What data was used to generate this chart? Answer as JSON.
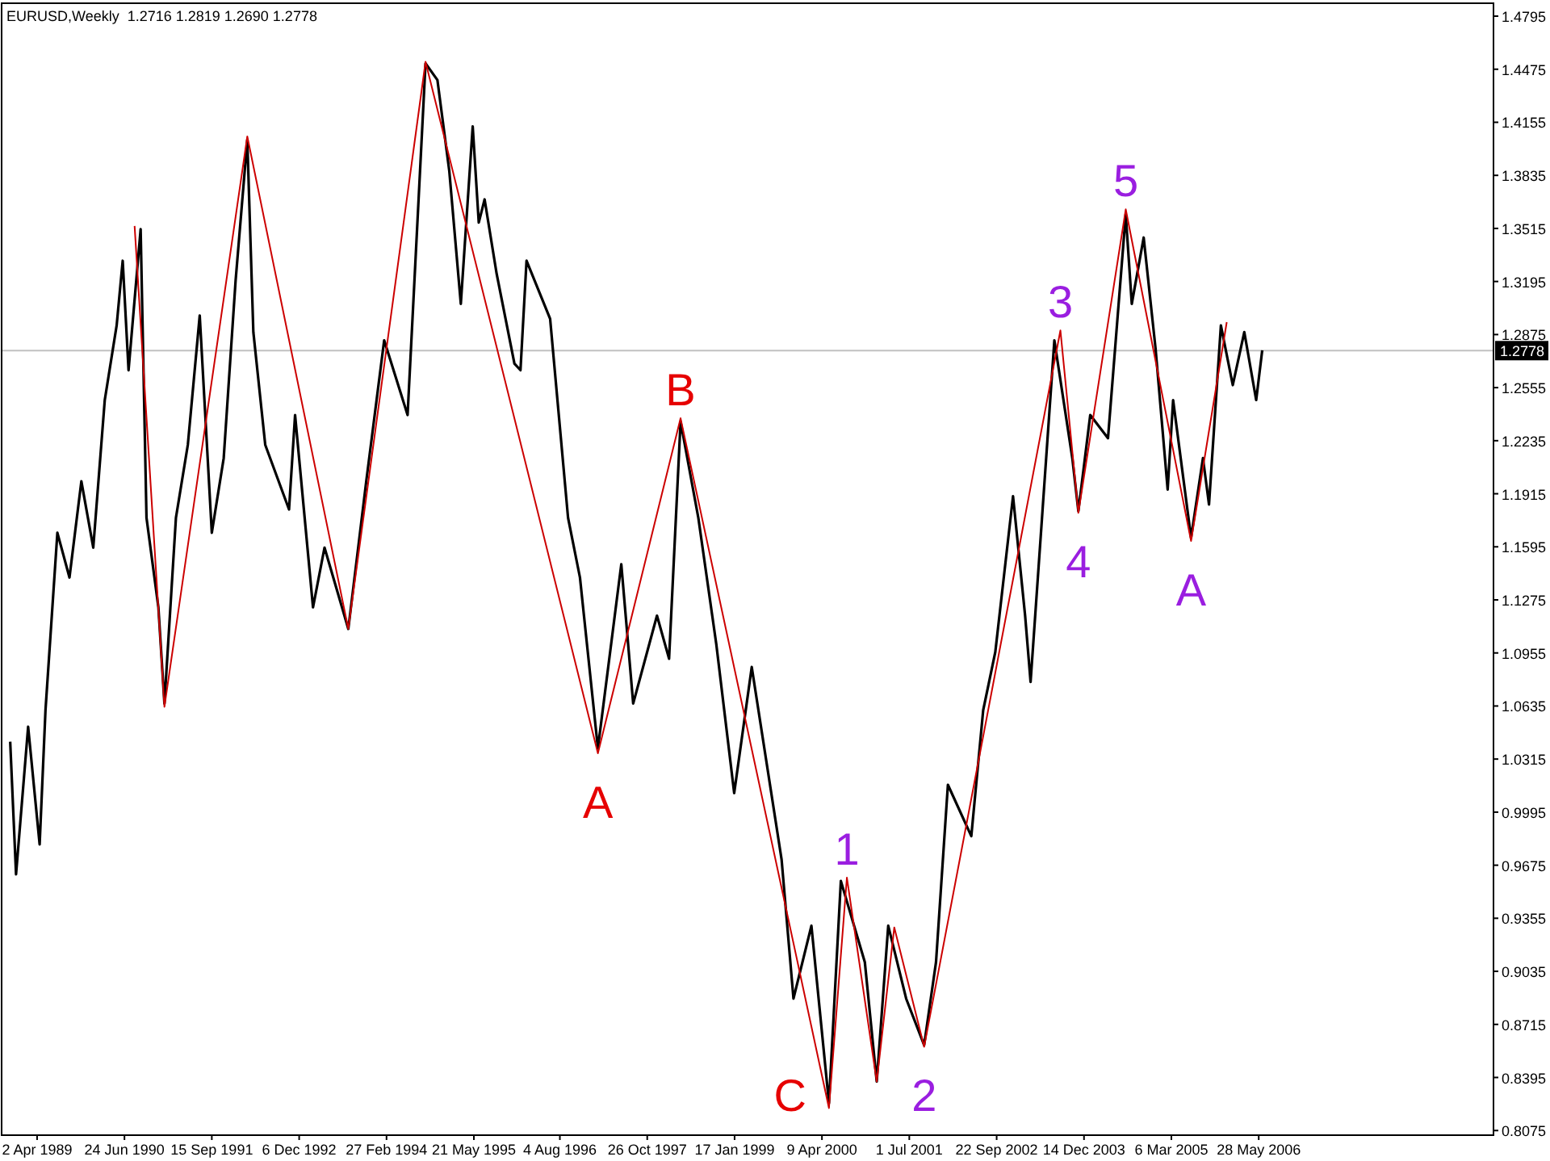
{
  "chart_data": {
    "type": "line",
    "title": "EURUSD,Weekly  1.2716 1.2819 1.2690 1.2778",
    "xlim": [
      "1988-10-02",
      "2009-09-13"
    ],
    "ylim": [
      0.8047,
      1.4873
    ],
    "xticks": [
      {
        "value": "1989-04-02",
        "label": "2 Apr 1989"
      },
      {
        "value": "1990-06-24",
        "label": "24 Jun 1990"
      },
      {
        "value": "1991-09-15",
        "label": "15 Sep 1991"
      },
      {
        "value": "1992-12-06",
        "label": "6 Dec 1992"
      },
      {
        "value": "1994-02-27",
        "label": "27 Feb 1994"
      },
      {
        "value": "1995-05-21",
        "label": "21 May 1995"
      },
      {
        "value": "1996-08-04",
        "label": "4 Aug 1996"
      },
      {
        "value": "1997-10-26",
        "label": "26 Oct 1997"
      },
      {
        "value": "1999-01-17",
        "label": "17 Jan 1999"
      },
      {
        "value": "2000-04-09",
        "label": "9 Apr 2000"
      },
      {
        "value": "2001-07-01",
        "label": "1 Jul 2001"
      },
      {
        "value": "2002-09-22",
        "label": "22 Sep 2002"
      },
      {
        "value": "2003-12-14",
        "label": "14 Dec 2003"
      },
      {
        "value": "2005-03-06",
        "label": "6 Mar 2005"
      },
      {
        "value": "2006-05-28",
        "label": "28 May 2006"
      }
    ],
    "yticks": [
      1.4795,
      1.4475,
      1.4155,
      1.3835,
      1.3515,
      1.3195,
      1.2875,
      1.2555,
      1.2235,
      1.1915,
      1.1595,
      1.1275,
      1.0955,
      1.0635,
      1.0315,
      0.9995,
      0.9675,
      0.9355,
      0.9035,
      0.8715,
      0.8395,
      0.8075
    ],
    "grid": false,
    "marker": "none",
    "line_style": "solid",
    "series": [
      {
        "color": "#000000",
        "x": [
          "1988-11",
          "1988-12",
          "1989-02",
          "1989-04",
          "1989-05",
          "1989-07",
          "1989-09",
          "1989-11",
          "1990-01",
          "1990-03",
          "1990-05",
          "1990-06",
          "1990-07",
          "1990-09",
          "1990-10",
          "1990-12",
          "1991-01",
          "1991-03",
          "1991-05",
          "1991-07",
          "1991-09",
          "1991-11",
          "1992-01",
          "1992-03",
          "1992-04",
          "1992-06",
          "1992-10",
          "1992-11",
          "1993-02",
          "1993-04",
          "1993-08",
          "1993-11",
          "1994-02",
          "1994-06",
          "1994-09",
          "1994-11",
          "1995-01",
          "1995-03",
          "1995-05",
          "1995-06",
          "1995-07",
          "1995-09",
          "1995-12",
          "1996-01",
          "1996-02",
          "1996-06",
          "1996-09",
          "1996-11",
          "1997-02",
          "1997-06",
          "1997-08",
          "1997-12",
          "1998-02",
          "1998-04",
          "1998-07",
          "1998-10",
          "1999-01",
          "1999-04",
          "1999-09",
          "1999-11",
          "2000-02",
          "2000-05",
          "2000-07",
          "2000-11",
          "2001-01",
          "2001-03",
          "2001-06",
          "2001-09",
          "2001-11",
          "2002-01",
          "2002-05",
          "2002-07",
          "2002-09",
          "2002-12",
          "2003-02",
          "2003-03",
          "2003-05",
          "2003-07",
          "2003-10",
          "2003-11",
          "2004-01",
          "2004-04",
          "2004-07",
          "2004-08",
          "2004-10",
          "2004-12",
          "2005-02",
          "2005-03",
          "2005-06",
          "2005-08",
          "2005-09",
          "2005-11",
          "2006-01",
          "2006-03",
          "2006-05",
          "2006-06"
        ],
        "values": [
          1.042,
          0.962,
          1.051,
          0.98,
          1.061,
          1.168,
          1.141,
          1.199,
          1.159,
          1.248,
          1.293,
          1.332,
          1.266,
          1.351,
          1.177,
          1.123,
          1.065,
          1.177,
          1.221,
          1.299,
          1.168,
          1.213,
          1.32,
          1.405,
          1.289,
          1.221,
          1.182,
          1.239,
          1.123,
          1.159,
          1.11,
          1.199,
          1.284,
          1.239,
          1.451,
          1.441,
          1.386,
          1.306,
          1.413,
          1.355,
          1.369,
          1.324,
          1.27,
          1.266,
          1.332,
          1.297,
          1.177,
          1.141,
          1.038,
          1.149,
          1.065,
          1.118,
          1.092,
          1.235,
          1.177,
          1.101,
          1.011,
          1.087,
          0.971,
          0.887,
          0.931,
          0.824,
          0.958,
          0.909,
          0.837,
          0.931,
          0.887,
          0.859,
          0.909,
          1.016,
          0.985,
          1.061,
          1.096,
          1.19,
          1.118,
          1.078,
          1.181,
          1.284,
          1.213,
          1.181,
          1.239,
          1.225,
          1.36,
          1.306,
          1.346,
          1.279,
          1.194,
          1.248,
          1.165,
          1.213,
          1.185,
          1.293,
          1.257,
          1.289,
          1.248,
          1.278
        ]
      },
      {
        "color": "#cc0000",
        "x": [
          "1990-08",
          "1991-01",
          "1992-03",
          "1993-08",
          "1994-09",
          "1997-02",
          "1998-04",
          "2000-05",
          "2000-08",
          "2001-01",
          "2001-04",
          "2001-09",
          "2003-08",
          "2003-11",
          "2004-07",
          "2005-06",
          "2005-12"
        ],
        "values": [
          1.353,
          1.063,
          1.407,
          1.11,
          1.452,
          1.035,
          1.237,
          0.821,
          0.96,
          0.837,
          0.93,
          0.858,
          1.29,
          1.18,
          1.363,
          1.163,
          1.295
        ]
      }
    ],
    "ref_lines": [
      {
        "axis": "y",
        "value": 1.2778,
        "label": "1.2778",
        "color": "#c0c0c0"
      }
    ],
    "annotations": [
      {
        "text": "A",
        "x": "1997-02",
        "y": 1.035
      },
      {
        "text": "B",
        "x": "1998-04",
        "y": 1.237
      },
      {
        "text": "C",
        "x": "2000-05",
        "y": 0.821
      },
      {
        "text": "1",
        "x": "2000-08",
        "y": 0.96
      },
      {
        "text": "2",
        "x": "2001-09",
        "y": 0.858
      },
      {
        "text": "3",
        "x": "2003-08",
        "y": 1.29
      },
      {
        "text": "4",
        "x": "2003-11",
        "y": 1.18
      },
      {
        "text": "5",
        "x": "2004-07",
        "y": 1.363
      },
      {
        "text": "A",
        "x": "2005-06",
        "y": 1.163
      }
    ]
  }
}
